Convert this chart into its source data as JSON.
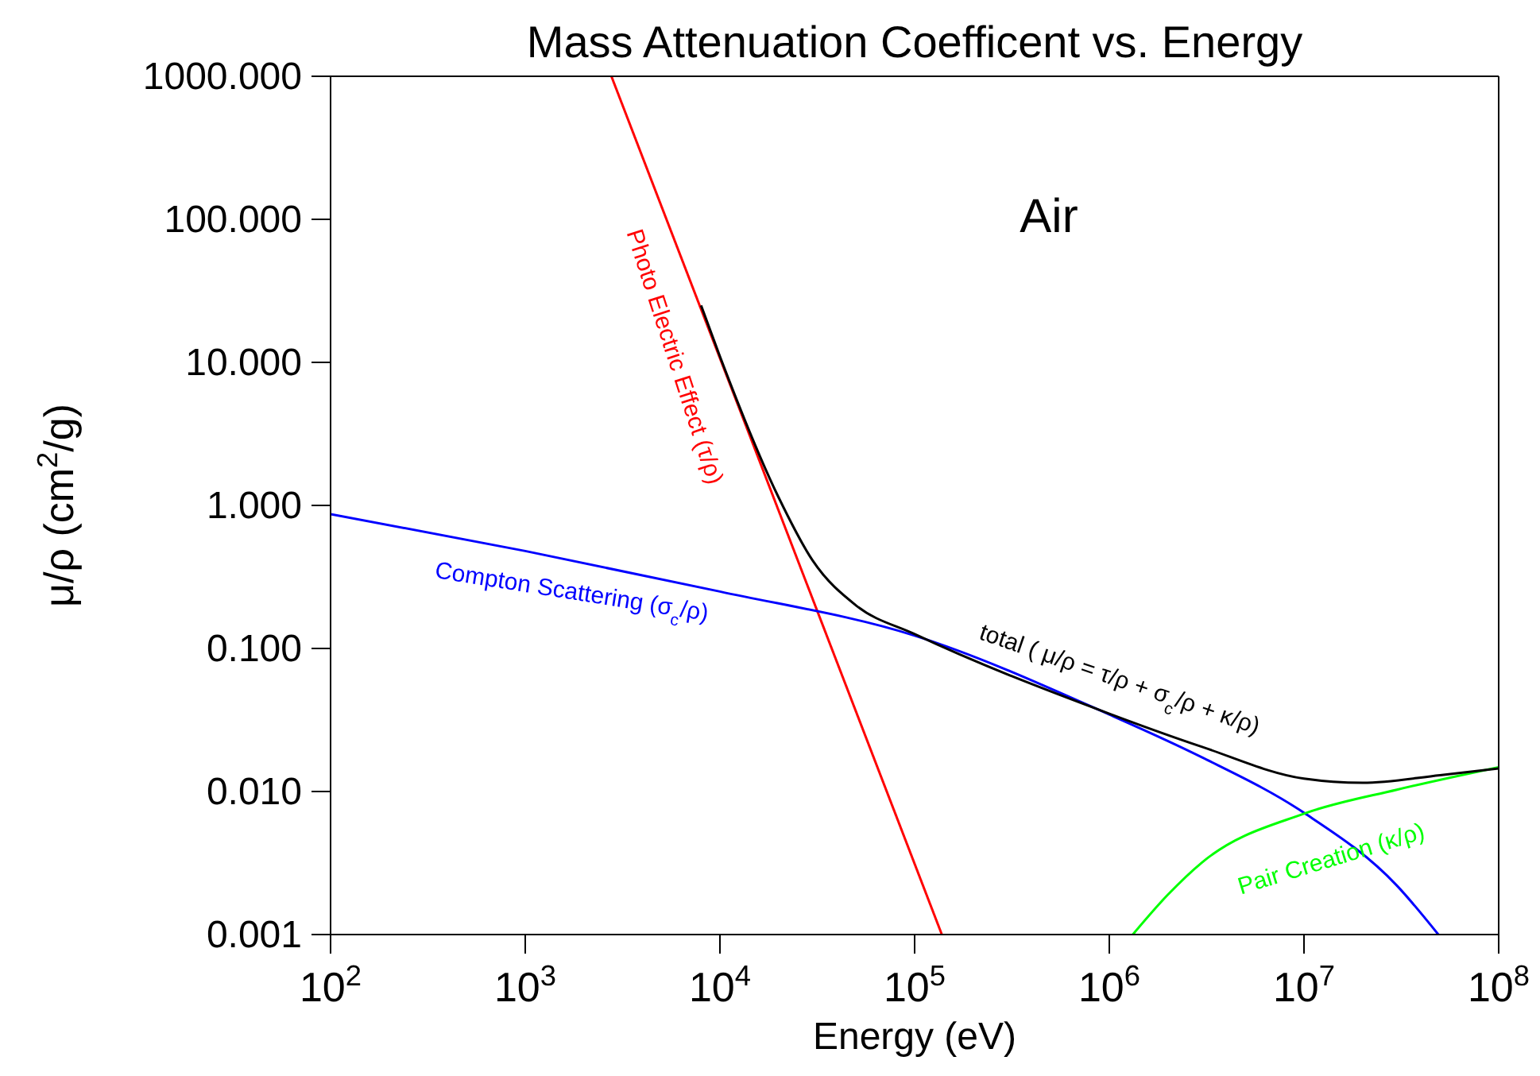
{
  "chart_data": {
    "type": "line",
    "title": "Mass Attenuation Coefficent vs. Energy",
    "xlabel": "Energy (eV)",
    "ylabel": "μ/ρ (cm$^{2}$/g)",
    "log": "xy",
    "marker": "none",
    "line_style": "solid",
    "xlim": [
      100,
      100000000
    ],
    "ylim": [
      0.001,
      1000
    ],
    "xticks": [
      {
        "value": 100,
        "label": "10$^{2}$"
      },
      {
        "value": 1000,
        "label": "10$^{3}$"
      },
      {
        "value": 10000,
        "label": "10$^{4}$"
      },
      {
        "value": 100000,
        "label": "10$^{5}$"
      },
      {
        "value": 1000000,
        "label": "10$^{6}$"
      },
      {
        "value": 10000000,
        "label": "10$^{7}$"
      },
      {
        "value": 100000000,
        "label": "10$^{8}$"
      }
    ],
    "yticks": [
      {
        "value": 0.001,
        "label": "0.001"
      },
      {
        "value": 0.01,
        "label": "0.010"
      },
      {
        "value": 0.1,
        "label": "0.100"
      },
      {
        "value": 1,
        "label": "1.000"
      },
      {
        "value": 10,
        "label": "10.000"
      },
      {
        "value": 100,
        "label": "100.000"
      },
      {
        "value": 1000,
        "label": "1000.000"
      }
    ],
    "annotations": [
      "Air"
    ],
    "series": [
      {
        "name": "Photo Electric Effect (τ/ρ)",
        "color": "#ff0000",
        "x": [
          2770,
          138000
        ],
        "values": [
          1000,
          0.001
        ]
      },
      {
        "name": "Compton Scattering (σ$_{c}$/ρ)",
        "color": "#0000ff",
        "x": [
          100,
          1000,
          10000,
          100000,
          1000000,
          3000000,
          10000000,
          30000000,
          49000000
        ],
        "values": [
          0.87,
          0.48,
          0.25,
          0.123,
          0.0345,
          0.0173,
          0.0071,
          0.0022,
          0.001
        ]
      },
      {
        "name": "Pair Creation (κ/ρ)",
        "color": "#00ff00",
        "x": [
          1320000,
          2000000,
          3000000,
          10000000,
          30000000,
          100000000
        ],
        "values": [
          0.001,
          0.0019,
          0.0032,
          0.007,
          0.0103,
          0.0148
        ]
      },
      {
        "name": "total ( μ/ρ = τ/ρ + σ$_{c}$/ρ + κ/ρ)",
        "color": "#000000",
        "x": [
          8000,
          10000,
          20000,
          30000,
          50000,
          100000,
          1000000,
          3000000,
          10000000,
          20000000,
          50000000,
          100000000
        ],
        "values": [
          25,
          11,
          1.14,
          0.41,
          0.2,
          0.126,
          0.035,
          0.0205,
          0.0123,
          0.0115,
          0.013,
          0.0145
        ]
      }
    ]
  }
}
